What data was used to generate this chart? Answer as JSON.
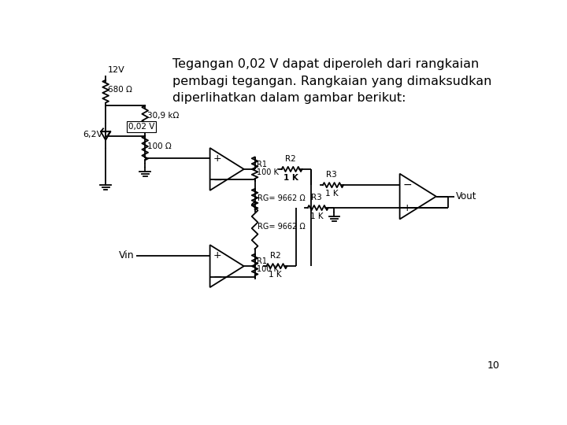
{
  "title_text": "Tegangan 0,02 V dapat diperoleh dari rangkaian\npembagi tegangan. Rangkaian yang dimaksudkan\ndiperlihatkan dalam gambar berikut:",
  "background_color": "#ffffff",
  "line_color": "#000000",
  "text_color": "#000000",
  "page_number": "10",
  "labels": {
    "V12": "12V",
    "R680": "680 Ω",
    "V62": "6,2V",
    "R309": "30,9 kΩ",
    "V002": "0,02 V",
    "R100": "100 Ω",
    "RG": "RG= 9662 Ω",
    "Vout": "Vout",
    "Vin": "Vin"
  }
}
